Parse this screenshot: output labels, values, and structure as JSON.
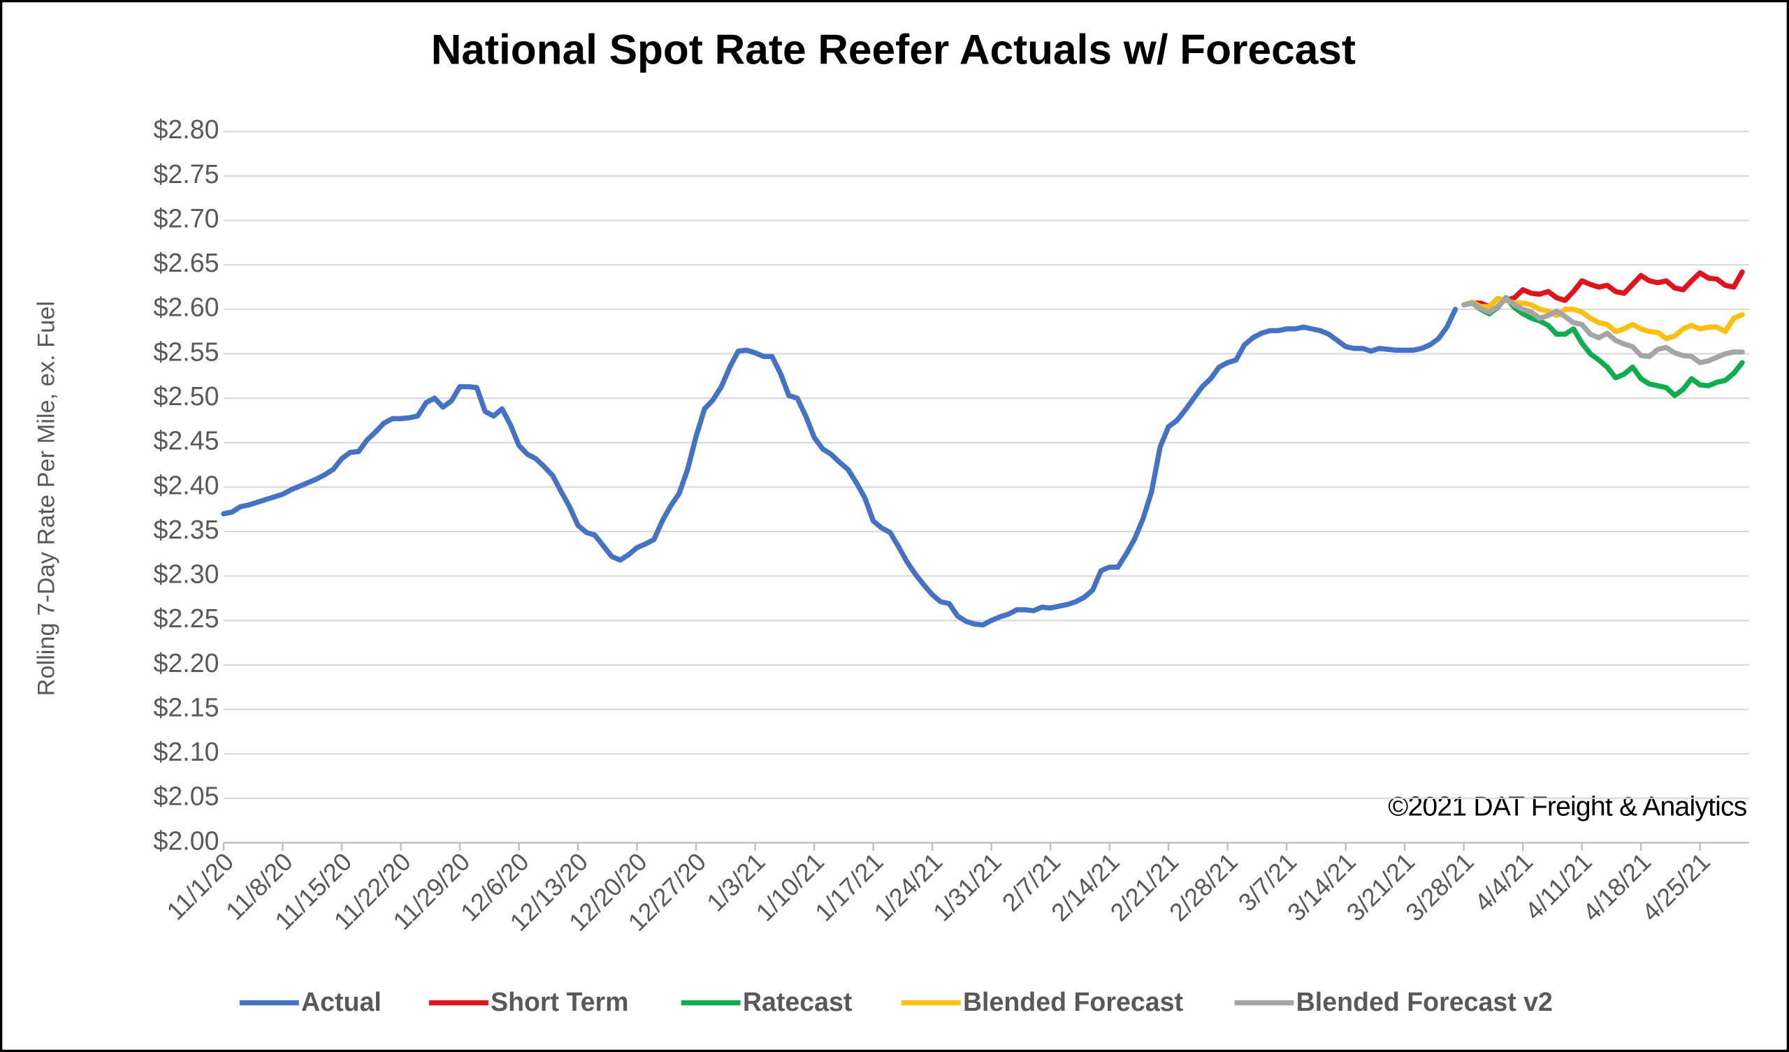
{
  "chart_data": {
    "type": "line",
    "title": "National Spot Rate Reefer Actuals w/ Forecast",
    "y_label": "Rolling 7-Day Rate Per Mile, ex. Fuel",
    "annotation": "©2021 DAT Freight & Analytics",
    "legend": "bottom",
    "grid": true,
    "ylim": [
      2.0,
      2.8
    ],
    "yticks": [
      {
        "value": 2.0,
        "label": "$2.00"
      },
      {
        "value": 2.05,
        "label": "$2.05"
      },
      {
        "value": 2.1,
        "label": "$2.10"
      },
      {
        "value": 2.15,
        "label": "$2.15"
      },
      {
        "value": 2.2,
        "label": "$2.20"
      },
      {
        "value": 2.25,
        "label": "$2.25"
      },
      {
        "value": 2.3,
        "label": "$2.30"
      },
      {
        "value": 2.35,
        "label": "$2.35"
      },
      {
        "value": 2.4,
        "label": "$2.40"
      },
      {
        "value": 2.45,
        "label": "$2.45"
      },
      {
        "value": 2.5,
        "label": "$2.50"
      },
      {
        "value": 2.55,
        "label": "$2.55"
      },
      {
        "value": 2.6,
        "label": "$2.60"
      },
      {
        "value": 2.65,
        "label": "$2.65"
      },
      {
        "value": 2.7,
        "label": "$2.70"
      },
      {
        "value": 2.75,
        "label": "$2.75"
      },
      {
        "value": 2.8,
        "label": "$2.80"
      }
    ],
    "categories": [
      "11/1/20",
      null,
      null,
      null,
      null,
      null,
      null,
      "11/8/20",
      null,
      null,
      null,
      null,
      null,
      null,
      "11/15/20",
      null,
      null,
      null,
      null,
      null,
      null,
      "11/22/20",
      null,
      null,
      null,
      null,
      null,
      null,
      "11/29/20",
      null,
      null,
      null,
      null,
      null,
      null,
      "12/6/20",
      null,
      null,
      null,
      null,
      null,
      null,
      "12/13/20",
      null,
      null,
      null,
      null,
      null,
      null,
      "12/20/20",
      null,
      null,
      null,
      null,
      null,
      null,
      "12/27/20",
      null,
      null,
      null,
      null,
      null,
      null,
      "1/3/21",
      null,
      null,
      null,
      null,
      null,
      null,
      "1/10/21",
      null,
      null,
      null,
      null,
      null,
      null,
      "1/17/21",
      null,
      null,
      null,
      null,
      null,
      null,
      "1/24/21",
      null,
      null,
      null,
      null,
      null,
      null,
      "1/31/21",
      null,
      null,
      null,
      null,
      null,
      null,
      "2/7/21",
      null,
      null,
      null,
      null,
      null,
      null,
      "2/14/21",
      null,
      null,
      null,
      null,
      null,
      null,
      "2/21/21",
      null,
      null,
      null,
      null,
      null,
      null,
      "2/28/21",
      null,
      null,
      null,
      null,
      null,
      null,
      "3/7/21",
      null,
      null,
      null,
      null,
      null,
      null,
      "3/14/21",
      null,
      null,
      null,
      null,
      null,
      null,
      "3/21/21",
      null,
      null,
      null,
      null,
      null,
      null,
      "3/28/21",
      null,
      null,
      null,
      null,
      null,
      null,
      "4/4/21",
      null,
      null,
      null,
      null,
      null,
      null,
      "4/11/21",
      null,
      null,
      null,
      null,
      null,
      null,
      "4/18/21",
      null,
      null,
      null,
      null,
      null,
      null,
      "4/25/21",
      null,
      null,
      null,
      null,
      null
    ],
    "series": [
      {
        "name": "Actual",
        "color": "#4472c4",
        "values": [
          2.37,
          2.372,
          2.378,
          2.38,
          2.383,
          2.386,
          2.389,
          2.392,
          2.397,
          2.401,
          2.405,
          2.409,
          2.414,
          2.42,
          2.432,
          2.439,
          2.44,
          2.453,
          2.462,
          2.472,
          2.477,
          2.477,
          2.478,
          2.48,
          2.495,
          2.5,
          2.49,
          2.497,
          2.513,
          2.513,
          2.512,
          2.485,
          2.48,
          2.488,
          2.47,
          2.447,
          2.437,
          2.432,
          2.423,
          2.413,
          2.395,
          2.378,
          2.357,
          2.349,
          2.346,
          2.334,
          2.322,
          2.318,
          2.324,
          2.332,
          2.336,
          2.341,
          2.362,
          2.379,
          2.393,
          2.42,
          2.457,
          2.488,
          2.498,
          2.513,
          2.535,
          2.553,
          2.554,
          2.551,
          2.547,
          2.547,
          2.528,
          2.503,
          2.5,
          2.48,
          2.456,
          2.443,
          2.437,
          2.428,
          2.42,
          2.405,
          2.388,
          2.362,
          2.354,
          2.349,
          2.333,
          2.316,
          2.302,
          2.29,
          2.279,
          2.271,
          2.269,
          2.255,
          2.249,
          2.246,
          2.245,
          2.25,
          2.254,
          2.257,
          2.262,
          2.262,
          2.261,
          2.265,
          2.264,
          2.266,
          2.268,
          2.271,
          2.276,
          2.284,
          2.306,
          2.31,
          2.31,
          2.325,
          2.342,
          2.365,
          2.395,
          2.445,
          2.468,
          2.475,
          2.487,
          2.5,
          2.513,
          2.522,
          2.535,
          2.54,
          2.543,
          2.56,
          2.568,
          2.573,
          2.576,
          2.576,
          2.578,
          2.578,
          2.58,
          2.578,
          2.576,
          2.572,
          2.565,
          2.558,
          2.556,
          2.556,
          2.553,
          2.556,
          2.555,
          2.554,
          2.554,
          2.554,
          2.556,
          2.56,
          2.567,
          2.58,
          2.6,
          null,
          null,
          null,
          null,
          null,
          null,
          null,
          null,
          null,
          null,
          null,
          null,
          null,
          null,
          null,
          null,
          null,
          null,
          null,
          null,
          null,
          null,
          null,
          null,
          null,
          null,
          null,
          null,
          null,
          null,
          null,
          null,
          null,
          null
        ]
      },
      {
        "name": "Short Term",
        "color": "#e3131b",
        "values": [
          null,
          null,
          null,
          null,
          null,
          null,
          null,
          null,
          null,
          null,
          null,
          null,
          null,
          null,
          null,
          null,
          null,
          null,
          null,
          null,
          null,
          null,
          null,
          null,
          null,
          null,
          null,
          null,
          null,
          null,
          null,
          null,
          null,
          null,
          null,
          null,
          null,
          null,
          null,
          null,
          null,
          null,
          null,
          null,
          null,
          null,
          null,
          null,
          null,
          null,
          null,
          null,
          null,
          null,
          null,
          null,
          null,
          null,
          null,
          null,
          null,
          null,
          null,
          null,
          null,
          null,
          null,
          null,
          null,
          null,
          null,
          null,
          null,
          null,
          null,
          null,
          null,
          null,
          null,
          null,
          null,
          null,
          null,
          null,
          null,
          null,
          null,
          null,
          null,
          null,
          null,
          null,
          null,
          null,
          null,
          null,
          null,
          null,
          null,
          null,
          null,
          null,
          null,
          null,
          null,
          null,
          null,
          null,
          null,
          null,
          null,
          null,
          null,
          null,
          null,
          null,
          null,
          null,
          null,
          null,
          null,
          null,
          null,
          null,
          null,
          null,
          null,
          null,
          null,
          null,
          null,
          null,
          null,
          null,
          null,
          null,
          null,
          null,
          null,
          null,
          null,
          null,
          null,
          null,
          null,
          null,
          null,
          2.605,
          2.607,
          2.607,
          2.603,
          2.612,
          2.61,
          2.613,
          2.622,
          2.618,
          2.617,
          2.62,
          2.613,
          2.61,
          2.62,
          2.632,
          2.628,
          2.625,
          2.627,
          2.62,
          2.618,
          2.628,
          2.638,
          2.632,
          2.63,
          2.632,
          2.624,
          2.622,
          2.632,
          2.641,
          2.635,
          2.634,
          2.627,
          2.625,
          2.642
        ]
      },
      {
        "name": "Ratecast",
        "color": "#0fad4e",
        "values": [
          null,
          null,
          null,
          null,
          null,
          null,
          null,
          null,
          null,
          null,
          null,
          null,
          null,
          null,
          null,
          null,
          null,
          null,
          null,
          null,
          null,
          null,
          null,
          null,
          null,
          null,
          null,
          null,
          null,
          null,
          null,
          null,
          null,
          null,
          null,
          null,
          null,
          null,
          null,
          null,
          null,
          null,
          null,
          null,
          null,
          null,
          null,
          null,
          null,
          null,
          null,
          null,
          null,
          null,
          null,
          null,
          null,
          null,
          null,
          null,
          null,
          null,
          null,
          null,
          null,
          null,
          null,
          null,
          null,
          null,
          null,
          null,
          null,
          null,
          null,
          null,
          null,
          null,
          null,
          null,
          null,
          null,
          null,
          null,
          null,
          null,
          null,
          null,
          null,
          null,
          null,
          null,
          null,
          null,
          null,
          null,
          null,
          null,
          null,
          null,
          null,
          null,
          null,
          null,
          null,
          null,
          null,
          null,
          null,
          null,
          null,
          null,
          null,
          null,
          null,
          null,
          null,
          null,
          null,
          null,
          null,
          null,
          null,
          null,
          null,
          null,
          null,
          null,
          null,
          null,
          null,
          null,
          null,
          null,
          null,
          null,
          null,
          null,
          null,
          null,
          null,
          null,
          null,
          null,
          null,
          null,
          null,
          2.605,
          2.607,
          2.6,
          2.595,
          2.602,
          2.613,
          2.602,
          2.595,
          2.59,
          2.587,
          2.582,
          2.572,
          2.572,
          2.578,
          2.562,
          2.55,
          2.543,
          2.535,
          2.523,
          2.527,
          2.535,
          2.522,
          2.516,
          2.514,
          2.512,
          2.503,
          2.51,
          2.522,
          2.515,
          2.514,
          2.518,
          2.52,
          2.528,
          2.54
        ]
      },
      {
        "name": "Blended Forecast",
        "color": "#fdc010",
        "values": [
          null,
          null,
          null,
          null,
          null,
          null,
          null,
          null,
          null,
          null,
          null,
          null,
          null,
          null,
          null,
          null,
          null,
          null,
          null,
          null,
          null,
          null,
          null,
          null,
          null,
          null,
          null,
          null,
          null,
          null,
          null,
          null,
          null,
          null,
          null,
          null,
          null,
          null,
          null,
          null,
          null,
          null,
          null,
          null,
          null,
          null,
          null,
          null,
          null,
          null,
          null,
          null,
          null,
          null,
          null,
          null,
          null,
          null,
          null,
          null,
          null,
          null,
          null,
          null,
          null,
          null,
          null,
          null,
          null,
          null,
          null,
          null,
          null,
          null,
          null,
          null,
          null,
          null,
          null,
          null,
          null,
          null,
          null,
          null,
          null,
          null,
          null,
          null,
          null,
          null,
          null,
          null,
          null,
          null,
          null,
          null,
          null,
          null,
          null,
          null,
          null,
          null,
          null,
          null,
          null,
          null,
          null,
          null,
          null,
          null,
          null,
          null,
          null,
          null,
          null,
          null,
          null,
          null,
          null,
          null,
          null,
          null,
          null,
          null,
          null,
          null,
          null,
          null,
          null,
          null,
          null,
          null,
          null,
          null,
          null,
          null,
          null,
          null,
          null,
          null,
          null,
          null,
          null,
          null,
          null,
          null,
          null,
          2.605,
          2.608,
          2.603,
          2.603,
          2.612,
          2.61,
          2.607,
          2.607,
          2.605,
          2.6,
          2.598,
          2.593,
          2.6,
          2.6,
          2.597,
          2.59,
          2.585,
          2.583,
          2.575,
          2.578,
          2.583,
          2.578,
          2.575,
          2.574,
          2.567,
          2.57,
          2.578,
          2.582,
          2.578,
          2.58,
          2.58,
          2.575,
          2.59,
          2.594
        ]
      },
      {
        "name": "Blended Forecast v2",
        "color": "#a5a5a5",
        "values": [
          null,
          null,
          null,
          null,
          null,
          null,
          null,
          null,
          null,
          null,
          null,
          null,
          null,
          null,
          null,
          null,
          null,
          null,
          null,
          null,
          null,
          null,
          null,
          null,
          null,
          null,
          null,
          null,
          null,
          null,
          null,
          null,
          null,
          null,
          null,
          null,
          null,
          null,
          null,
          null,
          null,
          null,
          null,
          null,
          null,
          null,
          null,
          null,
          null,
          null,
          null,
          null,
          null,
          null,
          null,
          null,
          null,
          null,
          null,
          null,
          null,
          null,
          null,
          null,
          null,
          null,
          null,
          null,
          null,
          null,
          null,
          null,
          null,
          null,
          null,
          null,
          null,
          null,
          null,
          null,
          null,
          null,
          null,
          null,
          null,
          null,
          null,
          null,
          null,
          null,
          null,
          null,
          null,
          null,
          null,
          null,
          null,
          null,
          null,
          null,
          null,
          null,
          null,
          null,
          null,
          null,
          null,
          null,
          null,
          null,
          null,
          null,
          null,
          null,
          null,
          null,
          null,
          null,
          null,
          null,
          null,
          null,
          null,
          null,
          null,
          null,
          null,
          null,
          null,
          null,
          null,
          null,
          null,
          null,
          null,
          null,
          null,
          null,
          null,
          null,
          null,
          null,
          null,
          null,
          null,
          null,
          null,
          2.605,
          2.607,
          2.601,
          2.597,
          2.603,
          2.612,
          2.605,
          2.6,
          2.597,
          2.59,
          2.593,
          2.598,
          2.592,
          2.585,
          2.583,
          2.572,
          2.568,
          2.573,
          2.565,
          2.561,
          2.558,
          2.548,
          2.547,
          2.555,
          2.557,
          2.551,
          2.548,
          2.547,
          2.54,
          2.542,
          2.546,
          2.55,
          2.552,
          2.552
        ]
      }
    ]
  }
}
